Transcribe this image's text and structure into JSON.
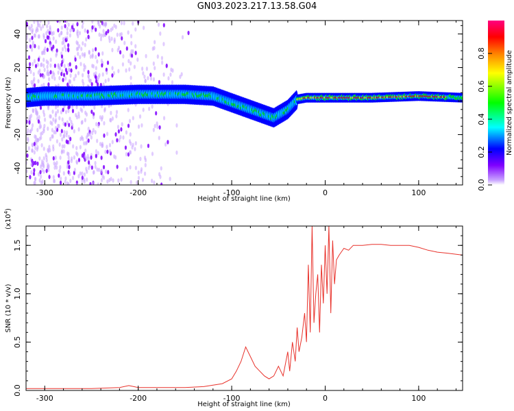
{
  "title": "GN03.2023.217.13.58.G04",
  "colors": {
    "snr_line": "#e8312a",
    "axis": "#000000"
  },
  "chart_data": [
    {
      "type": "heatmap",
      "xlabel": "Height of straight line (km)",
      "ylabel": "Frequency (Hz)",
      "xlim": [
        -320,
        147
      ],
      "ylim": [
        -50,
        48
      ],
      "xticks": [
        -300,
        -200,
        -100,
        0,
        100
      ],
      "xtick_labels": [
        "-300",
        "-200",
        "-100",
        "0",
        "100"
      ],
      "yticks": [
        -40,
        -20,
        0,
        20,
        40
      ],
      "ytick_labels": [
        "-40",
        "-20",
        "0",
        "20",
        "40"
      ],
      "colorbar": {
        "label": "Normalized spectral amplitude",
        "range": [
          0,
          1
        ],
        "ticks": [
          0.0,
          0.2,
          0.4,
          0.6,
          0.8
        ],
        "tick_labels": [
          "0.0",
          "0.2",
          "0.4",
          "0.6",
          "0.8"
        ],
        "colormap": [
          "#ffffff",
          "#c8a2ff",
          "#7f00ff",
          "#0000ff",
          "#00ffff",
          "#00ff00",
          "#ffff00",
          "#ff8000",
          "#ff0000",
          "#ff0080"
        ]
      },
      "ridge_frequency": {
        "x": [
          -320,
          -300,
          -250,
          -200,
          -150,
          -120,
          -100,
          -80,
          -70,
          -60,
          -55,
          -40,
          -30,
          -20,
          0,
          50,
          100,
          147
        ],
        "y": [
          2,
          3,
          3,
          4,
          4,
          3,
          -1,
          -5,
          -7,
          -9,
          -10,
          -5,
          1,
          2,
          2,
          2,
          3,
          2
        ]
      }
    },
    {
      "type": "line",
      "xlabel": "Height of straight line (km)",
      "ylabel": "SNR (10 * v/v)",
      "y_scale_label": "(x10",
      "y_scale_exp": "4",
      "y_scale_close": ")",
      "xlim": [
        -320,
        147
      ],
      "ylim": [
        0,
        1.7
      ],
      "xticks": [
        -300,
        -200,
        -100,
        0,
        100
      ],
      "xtick_labels": [
        "-300",
        "-200",
        "-100",
        "0",
        "100"
      ],
      "yticks": [
        0.0,
        0.5,
        1.0,
        1.5
      ],
      "ytick_labels": [
        "0.0",
        "0.5",
        "1.0",
        "1.5"
      ],
      "series": [
        {
          "x": [
            -320,
            -300,
            -250,
            -220,
            -210,
            -200,
            -180,
            -150,
            -130,
            -110,
            -100,
            -95,
            -90,
            -85,
            -80,
            -75,
            -70,
            -65,
            -60,
            -55,
            -50,
            -45,
            -40,
            -38,
            -35,
            -32,
            -30,
            -28,
            -25,
            -22,
            -20,
            -18,
            -16,
            -14,
            -12,
            -10,
            -8,
            -6,
            -4,
            -2,
            0,
            2,
            4,
            6,
            8,
            10,
            12,
            15,
            20,
            25,
            30,
            40,
            50,
            60,
            70,
            80,
            90,
            100,
            110,
            120,
            130,
            147
          ],
          "y": [
            0.02,
            0.02,
            0.02,
            0.03,
            0.05,
            0.03,
            0.03,
            0.03,
            0.04,
            0.07,
            0.12,
            0.2,
            0.3,
            0.45,
            0.35,
            0.25,
            0.2,
            0.15,
            0.12,
            0.15,
            0.25,
            0.15,
            0.4,
            0.2,
            0.5,
            0.3,
            0.65,
            0.4,
            0.55,
            0.8,
            0.5,
            1.3,
            0.6,
            1.7,
            0.7,
            1.0,
            1.2,
            0.6,
            1.3,
            0.9,
            1.5,
            1.0,
            1.7,
            0.8,
            1.55,
            1.1,
            1.35,
            1.4,
            1.47,
            1.45,
            1.5,
            1.5,
            1.51,
            1.51,
            1.5,
            1.5,
            1.5,
            1.48,
            1.45,
            1.43,
            1.42,
            1.4
          ]
        }
      ]
    }
  ]
}
